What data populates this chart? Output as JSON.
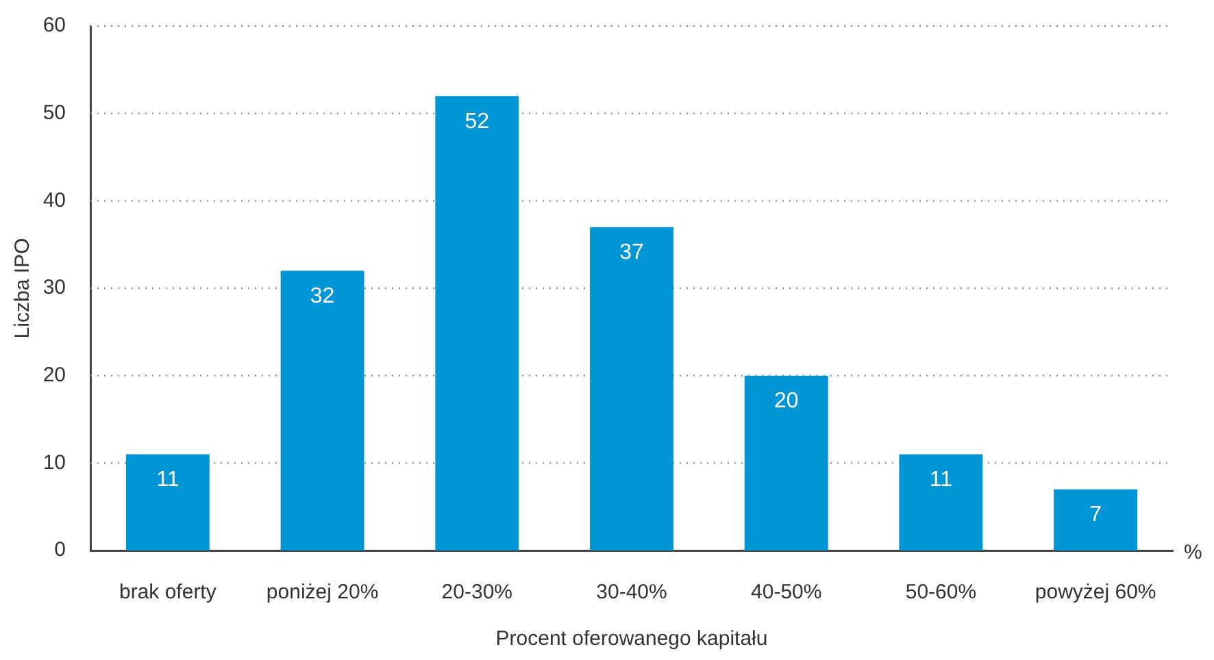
{
  "chart_data": {
    "type": "bar",
    "xlabel": "Procent oferowanego kapitału",
    "ylabel": "Liczba IPO",
    "categories": [
      "brak oferty",
      "poniżej 20%",
      "20-30%",
      "30-40%",
      "40-50%",
      "50-60%",
      "powyżej 60%"
    ],
    "values": [
      11,
      32,
      52,
      37,
      20,
      11,
      7
    ],
    "color": "#0095d5",
    "ylim": [
      0,
      60
    ],
    "yticks": [
      0,
      10,
      20,
      30,
      40,
      50,
      60
    ],
    "grid": "y",
    "data_labels": true,
    "annotations": [
      "%"
    ]
  }
}
